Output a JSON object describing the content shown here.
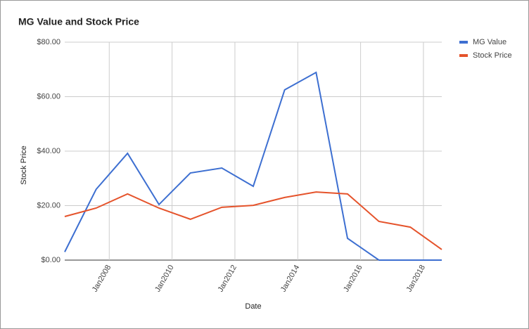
{
  "chart_data": {
    "type": "line",
    "title": "MG Value and Stock Price",
    "x_label": "Date",
    "y_label": "Stock Price",
    "x": [
      "2006-08",
      "2007-08",
      "2008-08",
      "2009-08",
      "2010-08",
      "2011-08",
      "2012-08",
      "2013-08",
      "2014-08",
      "2015-08",
      "2016-08",
      "2017-08",
      "2018-08"
    ],
    "series": [
      {
        "name": "MG Value",
        "color": "#3d6fd1",
        "values": [
          3,
          26,
          39.2,
          20.4,
          32,
          33.8,
          27.1,
          62.5,
          68.9,
          8,
          0,
          0,
          0
        ]
      },
      {
        "name": "Stock Price",
        "color": "#e5532b",
        "values": [
          16,
          19.1,
          24.3,
          19.1,
          15,
          19.4,
          20.1,
          23,
          25,
          24.3,
          14.2,
          12.1,
          3.9
        ]
      }
    ],
    "xlim": [
      "2006-08",
      "2018-08"
    ],
    "xticks": [
      {
        "value": "2008-01",
        "label": "Jan2008"
      },
      {
        "value": "2010-01",
        "label": "Jan2010"
      },
      {
        "value": "2012-01",
        "label": "Jan2012"
      },
      {
        "value": "2014-01",
        "label": "Jan2014"
      },
      {
        "value": "2016-01",
        "label": "Jan2016"
      },
      {
        "value": "2018-01",
        "label": "Jan2018"
      }
    ],
    "ylim": [
      0,
      80
    ],
    "yticks": [
      {
        "value": 0,
        "label": "$0.00"
      },
      {
        "value": 20,
        "label": "$20.00"
      },
      {
        "value": 40,
        "label": "$40.00"
      },
      {
        "value": 60,
        "label": "$60.00"
      },
      {
        "value": 80,
        "label": "$80.00"
      }
    ],
    "grid": true,
    "legend": "right"
  }
}
